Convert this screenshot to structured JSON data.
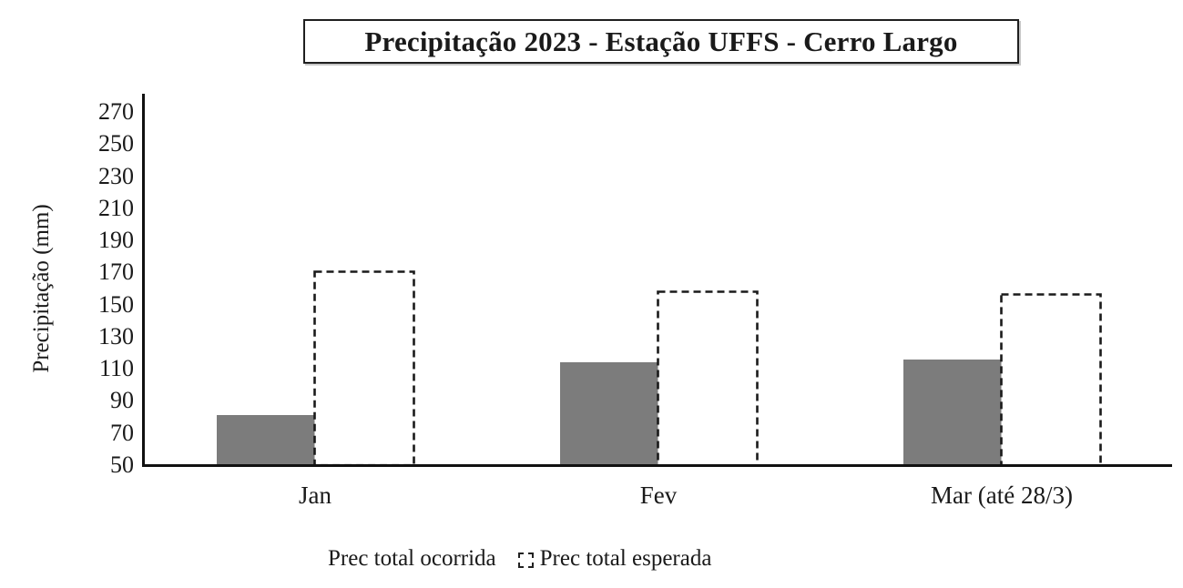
{
  "chart_data": {
    "type": "bar",
    "title": "Precipitação 2023 - Estação UFFS - Cerro Largo",
    "ylabel": "Precipitação (mm)",
    "categories": [
      "Jan",
      "Fev",
      "Mar (até 28/3)"
    ],
    "series": [
      {
        "name": "Prec total ocorrida",
        "style": "solid",
        "color": "#7c7c7c",
        "values": [
          81,
          114,
          116
        ]
      },
      {
        "name": "Prec total esperada",
        "style": "dashed",
        "color": "#ffffff",
        "border_color": "#1a1a1a",
        "values": [
          170,
          158,
          156
        ]
      }
    ],
    "ylim": [
      50,
      270
    ],
    "ytick_step": 20,
    "yticks": [
      270,
      250,
      230,
      210,
      190,
      170,
      150,
      130,
      110,
      90,
      70,
      50
    ],
    "grid": false,
    "legend_position": "bottom"
  },
  "colors": {
    "background": "#ffffff",
    "axis": "#111111",
    "text": "#1a1a1a",
    "bar_solid": "#7c7c7c"
  }
}
